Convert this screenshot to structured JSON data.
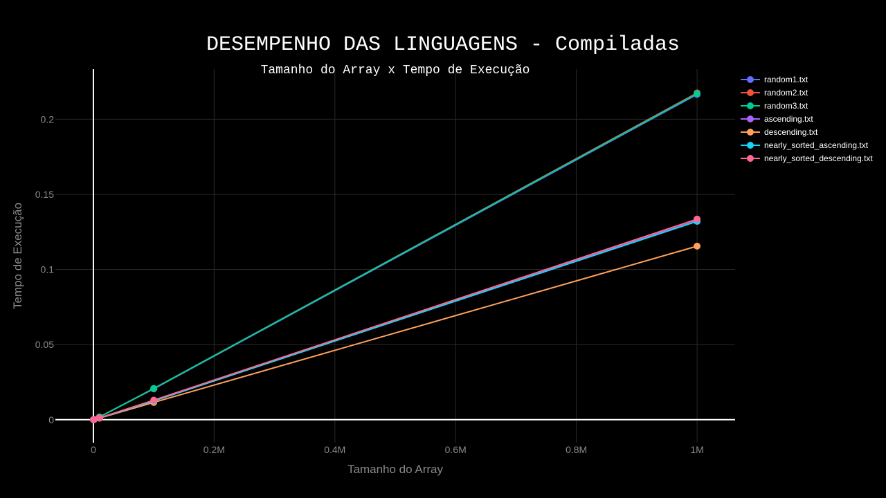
{
  "chart_data": {
    "type": "line",
    "title": "DESEMPENHO DAS LINGUAGENS - Compiladas",
    "subtitle": "Tamanho do Array x Tempo de Execução",
    "xlabel": "Tamanho do Array",
    "ylabel": "Tempo de Execução",
    "xlim": [
      -63000,
      1063000
    ],
    "ylim": [
      -0.0153,
      0.2333
    ],
    "x_ticks": [
      0,
      200000,
      400000,
      600000,
      800000,
      1000000
    ],
    "x_tick_labels": [
      "0",
      "0.2M",
      "0.4M",
      "0.6M",
      "0.8M",
      "1M"
    ],
    "y_ticks": [
      0,
      0.05,
      0.1,
      0.15,
      0.2
    ],
    "y_tick_labels": [
      "0",
      "0.05",
      "0.1",
      "0.15",
      "0.2"
    ],
    "grid": true,
    "legend_position": "top-right",
    "x": [
      100,
      1000,
      10000,
      100000,
      1000000
    ],
    "series": [
      {
        "name": "random1.txt",
        "color": "#636efa",
        "values": [
          1e-05,
          0.0001,
          0.0018,
          0.0205,
          0.2165
        ]
      },
      {
        "name": "random2.txt",
        "color": "#ef553b",
        "values": [
          1e-05,
          0.0001,
          0.0018,
          0.0207,
          0.2175
        ]
      },
      {
        "name": "random3.txt",
        "color": "#00cc96",
        "values": [
          1e-05,
          0.0001,
          0.0018,
          0.0208,
          0.217
        ]
      },
      {
        "name": "ascending.txt",
        "color": "#ab63fa",
        "values": [
          1e-05,
          0.0001,
          0.0011,
          0.0125,
          0.1325
        ]
      },
      {
        "name": "descending.txt",
        "color": "#ffa15a",
        "values": [
          1e-05,
          0.0001,
          0.001,
          0.0115,
          0.1155
        ]
      },
      {
        "name": "nearly_sorted_ascending.txt",
        "color": "#19d3f3",
        "values": [
          1e-05,
          0.0001,
          0.0011,
          0.0125,
          0.132
        ]
      },
      {
        "name": "nearly_sorted_descending.txt",
        "color": "#ff6692",
        "values": [
          1e-05,
          0.0001,
          0.0012,
          0.013,
          0.1335
        ]
      }
    ]
  }
}
